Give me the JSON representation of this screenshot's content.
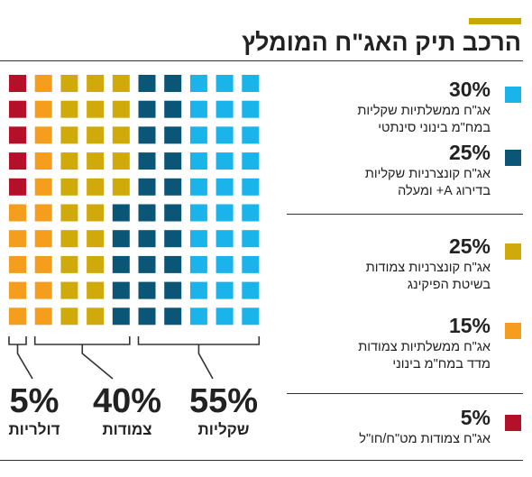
{
  "header": {
    "title": "הרכב תיק האג\"ח המומלץ",
    "accent_color": "#c8a800"
  },
  "chart_data": {
    "type": "waffle",
    "columns": 10,
    "rows": 10,
    "total_cells": 100,
    "series": [
      {
        "name": "אג\"ח ממשלתיות שקליות במח\"מ בינוני סינתטי",
        "value": 30,
        "color": "#1ab3ea"
      },
      {
        "name": "אג\"ח קונצרניות שקליות בדירוג A+ ומעלה",
        "value": 25,
        "color": "#0b5577"
      },
      {
        "name": "אג\"ח קונצרניות צמודות בשיטת הפיקינג",
        "value": 25,
        "color": "#cfaa0a"
      },
      {
        "name": "אג\"ח ממשלתיות צמודות מדד במח\"מ בינוני",
        "value": 15,
        "color": "#f59d1c"
      },
      {
        "name": "אג\"ח צמודות מט\"ח/חו\"ל",
        "value": 5,
        "color": "#b5102a"
      }
    ],
    "groups": [
      {
        "label": "שקליות",
        "value": 55
      },
      {
        "label": "צמודות",
        "value": 40
      },
      {
        "label": "דולריות",
        "value": 5
      }
    ]
  },
  "legend": {
    "items": [
      {
        "pct": "30%",
        "line1": "אג\"ח ממשלתיות שקליות",
        "line2": "במח\"מ בינוני סינתטי",
        "color": "#1ab3ea"
      },
      {
        "pct": "25%",
        "line1": "אג\"ח קונצרניות שקליות",
        "line2": "בדירוג A+ ומעלה",
        "color": "#0b5577"
      },
      {
        "pct": "25%",
        "line1": "אג\"ח קונצרניות צמודות",
        "line2": "בשיטת הפיקינג",
        "color": "#cfaa0a"
      },
      {
        "pct": "15%",
        "line1": "אג\"ח ממשלתיות צמודות",
        "line2": "מדד במח\"מ בינוני",
        "color": "#f59d1c"
      },
      {
        "pct": "5%",
        "line1": "אג\"ח צמודות מט\"ח/חו\"ל",
        "line2": "",
        "color": "#b5102a"
      }
    ]
  },
  "groups": [
    {
      "pct": "5%",
      "label": "דולריות"
    },
    {
      "pct": "40%",
      "label": "צמודות"
    },
    {
      "pct": "55%",
      "label": "שקליות"
    }
  ]
}
